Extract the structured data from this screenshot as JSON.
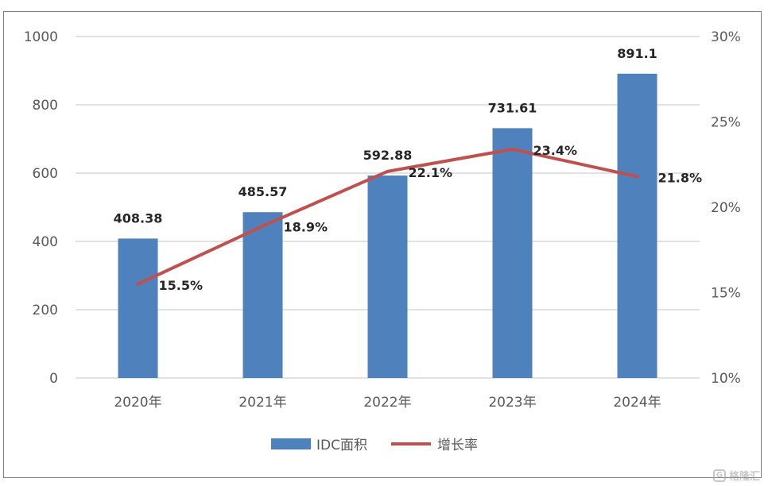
{
  "chart_data": {
    "type": "bar",
    "title": "",
    "categories": [
      "2020年",
      "2021年",
      "2022年",
      "2023年",
      "2024年"
    ],
    "series": [
      {
        "name": "IDC面积",
        "type": "bar",
        "axis": "left",
        "values": [
          408.38,
          485.57,
          592.88,
          731.61,
          891.1
        ],
        "labels": [
          "408.38",
          "485.57",
          "592.88",
          "731.61",
          "891.1"
        ],
        "color": "#4f81bd"
      },
      {
        "name": "增长率",
        "type": "line",
        "axis": "right",
        "values": [
          15.5,
          18.9,
          22.1,
          23.4,
          21.8
        ],
        "labels": [
          "15.5%",
          "18.9%",
          "22.1%",
          "23.4%",
          "21.8%"
        ],
        "color": "#c0504d"
      }
    ],
    "y_left": {
      "min": 0,
      "max": 1000,
      "ticks": [
        0,
        200,
        400,
        600,
        800,
        1000
      ],
      "tick_labels": [
        "0",
        "200",
        "400",
        "600",
        "800",
        "1000"
      ]
    },
    "y_right": {
      "min": 10,
      "max": 30,
      "ticks": [
        10,
        15,
        20,
        25,
        30
      ],
      "tick_labels": [
        "10%",
        "15%",
        "20%",
        "25%",
        "30%"
      ]
    },
    "grid": true,
    "legend_position": "bottom-center",
    "gridline_color": "#d9d9d9"
  },
  "watermark": {
    "icon": "G",
    "text": "格隆汇"
  }
}
